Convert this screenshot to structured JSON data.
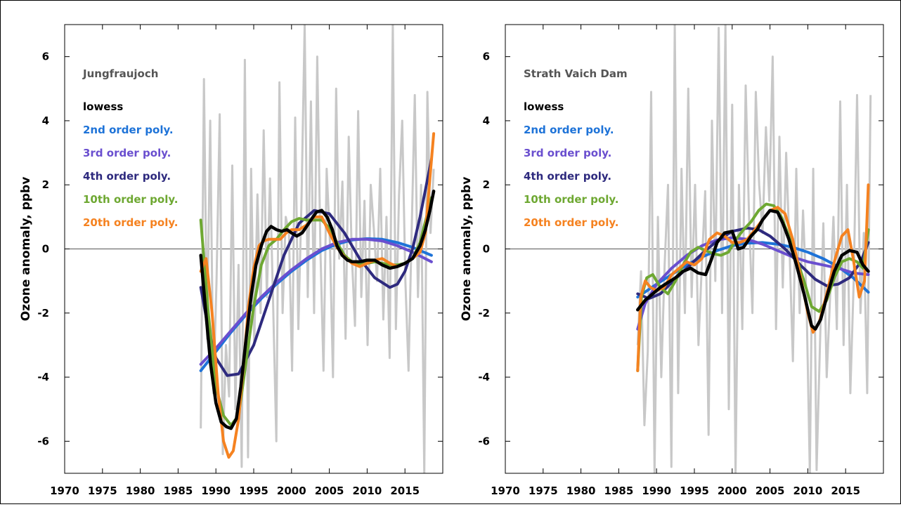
{
  "chart_data": [
    {
      "type": "line",
      "title": "Jungfraujoch",
      "ylabel": "Ozone anomaly, ppbv",
      "xlabel": "",
      "xlim": [
        1970,
        2020
      ],
      "ylim": [
        -7,
        7
      ],
      "xticks": [
        1970,
        1975,
        1980,
        1985,
        1990,
        1995,
        2000,
        2005,
        2010,
        2015
      ],
      "yticks": [
        -6,
        -4,
        -2,
        0,
        2,
        4,
        6
      ],
      "zero_line": true,
      "grid": false,
      "legend": "top-left",
      "raw": {
        "color": "#c8c8c8",
        "x0": 1988,
        "x1": 2018.8,
        "values": [
          -5.6,
          5.3,
          -2.8,
          4.0,
          -4.5,
          -1.0,
          4.2,
          -6.4,
          -3.0,
          -4.6,
          2.6,
          -5.0,
          -0.5,
          -6.8,
          5.9,
          -6.5,
          2.5,
          -3.0,
          1.7,
          -2.0,
          3.7,
          -1.5,
          2.2,
          -1.8,
          -6.0,
          5.2,
          -2.0,
          1.0,
          0.5,
          -3.8,
          4.1,
          -2.5,
          1.5,
          7.0,
          -1.5,
          4.6,
          -2.0,
          6.0,
          0.0,
          -3.8,
          2.5,
          0.3,
          -4.0,
          5.0,
          -0.3,
          2.1,
          -2.8,
          3.5,
          -0.2,
          -2.4,
          4.3,
          -1.5,
          1.5,
          -3.0,
          2.0,
          0.6,
          -1.0,
          2.5,
          -2.2,
          1.0,
          -3.4,
          7.0,
          -2.5,
          1.7,
          4.0,
          -1.0,
          -3.8,
          0.5,
          4.8,
          -1.5,
          2.0,
          -7.0,
          4.9,
          0.5,
          2.5
        ]
      },
      "series": [
        {
          "name": "2nd order poly.",
          "color": "#1e73d8",
          "x": [
            1988,
            1990,
            1992,
            1994,
            1996,
            1998,
            2000,
            2002,
            2004,
            2006,
            2008,
            2010,
            2012,
            2014,
            2016,
            2018.5
          ],
          "y": [
            -3.8,
            -3.2,
            -2.6,
            -2.05,
            -1.55,
            -1.1,
            -0.7,
            -0.35,
            -0.05,
            0.15,
            0.28,
            0.32,
            0.3,
            0.2,
            0.05,
            -0.2
          ]
        },
        {
          "name": "3rd order poly.",
          "color": "#6a4fcf",
          "x": [
            1988,
            1990,
            1992,
            1994,
            1996,
            1998,
            2000,
            2002,
            2004,
            2006,
            2008,
            2010,
            2012,
            2014,
            2016,
            2018.5
          ],
          "y": [
            -3.6,
            -3.1,
            -2.55,
            -2.0,
            -1.5,
            -1.05,
            -0.65,
            -0.3,
            0.0,
            0.2,
            0.3,
            0.3,
            0.25,
            0.1,
            -0.1,
            -0.4
          ]
        },
        {
          "name": "4th order poly.",
          "color": "#2e2a7e",
          "x": [
            1988,
            1989,
            1990,
            1991.5,
            1993,
            1995,
            1997,
            1999,
            2001,
            2003,
            2005,
            2007,
            2009,
            2011,
            2013,
            2014,
            2015,
            2016,
            2017,
            2018.5
          ],
          "y": [
            -1.2,
            -2.5,
            -3.4,
            -3.95,
            -3.9,
            -3.0,
            -1.6,
            -0.2,
            0.8,
            1.2,
            1.1,
            0.5,
            -0.3,
            -0.9,
            -1.2,
            -1.1,
            -0.7,
            0.0,
            1.0,
            2.8
          ]
        },
        {
          "name": "10th order poly.",
          "color": "#6ea832",
          "x": [
            1988,
            1989,
            1990,
            1991,
            1992,
            1993,
            1994,
            1995,
            1996,
            1997,
            1998,
            1999,
            2000,
            2001,
            2002,
            2003,
            2004,
            2005,
            2006,
            2007,
            2008,
            2009,
            2010,
            2011,
            2012,
            2013,
            2014,
            2015,
            2016,
            2017,
            2018.5
          ],
          "y": [
            0.9,
            -2.0,
            -4.3,
            -5.2,
            -5.5,
            -5.2,
            -3.5,
            -1.8,
            -0.5,
            0.1,
            0.3,
            0.6,
            0.85,
            0.95,
            0.9,
            0.9,
            0.9,
            0.65,
            0.2,
            -0.2,
            -0.4,
            -0.5,
            -0.45,
            -0.4,
            -0.45,
            -0.5,
            -0.5,
            -0.45,
            -0.3,
            0.2,
            1.6
          ]
        },
        {
          "name": "20th order poly.",
          "color": "#f58220",
          "x": [
            1988,
            1988.7,
            1989.5,
            1990.3,
            1991,
            1991.7,
            1992.3,
            1993,
            1993.7,
            1994.3,
            1995,
            1995.7,
            1996.3,
            1997,
            1997.7,
            1998.5,
            1999.3,
            2000,
            2001,
            2002,
            2003,
            2004,
            2005,
            2006,
            2007,
            2008,
            2009,
            2010,
            2011,
            2012,
            2013,
            2014,
            2015,
            2016,
            2017,
            2017.7,
            2018.3,
            2018.8
          ],
          "y": [
            -0.7,
            -0.3,
            -2.0,
            -4.5,
            -6.0,
            -6.5,
            -6.3,
            -5.3,
            -3.5,
            -1.8,
            -0.6,
            0.1,
            0.25,
            0.3,
            0.3,
            0.3,
            0.5,
            0.6,
            0.6,
            0.75,
            1.0,
            1.0,
            0.5,
            0.05,
            -0.25,
            -0.45,
            -0.55,
            -0.45,
            -0.35,
            -0.3,
            -0.45,
            -0.55,
            -0.45,
            -0.3,
            -0.1,
            0.5,
            2.2,
            3.6
          ]
        },
        {
          "name": "lowess",
          "color": "#000000",
          "x": [
            1988,
            1988.6,
            1989.3,
            1990,
            1990.7,
            1991.4,
            1992,
            1992.7,
            1993.3,
            1994,
            1994.7,
            1995.3,
            1996,
            1996.7,
            1997.3,
            1998,
            1998.7,
            1999.4,
            2000,
            2000.7,
            2001.4,
            2002,
            2002.7,
            2003.3,
            2004,
            2004.7,
            2005.4,
            2006,
            2006.7,
            2007.4,
            2008,
            2009,
            2010,
            2011,
            2012,
            2013,
            2014,
            2015,
            2016,
            2017,
            2017.7,
            2018.3,
            2018.8
          ],
          "y": [
            -0.2,
            -1.8,
            -3.6,
            -4.8,
            -5.4,
            -5.55,
            -5.6,
            -5.3,
            -4.3,
            -2.8,
            -1.4,
            -0.5,
            0.1,
            0.55,
            0.7,
            0.6,
            0.55,
            0.6,
            0.5,
            0.4,
            0.5,
            0.7,
            0.95,
            1.15,
            1.2,
            1.0,
            0.6,
            0.1,
            -0.2,
            -0.35,
            -0.4,
            -0.4,
            -0.35,
            -0.35,
            -0.5,
            -0.6,
            -0.55,
            -0.45,
            -0.3,
            0.1,
            0.6,
            1.2,
            1.8
          ]
        }
      ]
    },
    {
      "type": "line",
      "title": "Strath Vaich Dam",
      "ylabel": "Ozone anomaly, ppbv",
      "xlabel": "",
      "xlim": [
        1970,
        2020
      ],
      "ylim": [
        -7,
        7
      ],
      "xticks": [
        1970,
        1975,
        1980,
        1985,
        1990,
        1995,
        2000,
        2005,
        2010,
        2015
      ],
      "yticks": [
        -6,
        -4,
        -2,
        0,
        2,
        4,
        6
      ],
      "zero_line": true,
      "grid": false,
      "legend": "top-left",
      "raw": {
        "color": "#c8c8c8",
        "x0": 1987.5,
        "x1": 2018.3,
        "values": [
          -3.0,
          -0.7,
          -5.5,
          -3.2,
          4.9,
          -7.0,
          1.0,
          -4.0,
          -0.5,
          2.0,
          -6.8,
          7.0,
          -4.5,
          2.5,
          -2.0,
          5.0,
          -1.5,
          2.0,
          -3.0,
          -0.5,
          1.8,
          -5.8,
          4.0,
          -1.0,
          6.9,
          -2.0,
          7.0,
          -5.0,
          4.5,
          -7.0,
          2.0,
          -2.5,
          5.1,
          1.0,
          -2.0,
          4.9,
          2.0,
          0.5,
          3.8,
          1.5,
          6.0,
          -2.5,
          3.5,
          -1.2,
          3.0,
          0.0,
          -3.5,
          2.5,
          -2.0,
          1.2,
          -1.5,
          -7.0,
          2.5,
          -6.9,
          -3.0,
          0.8,
          -4.0,
          -1.5,
          1.0,
          -2.5,
          4.6,
          -3.0,
          2.0,
          -4.5,
          -1.0,
          4.8,
          -2.0,
          0.5,
          -4.5,
          4.8
        ]
      },
      "series": [
        {
          "name": "2nd order poly.",
          "color": "#1e73d8",
          "x": [
            1987.5,
            1990,
            1992,
            1994,
            1996,
            1998,
            2000,
            2002,
            2004,
            2006,
            2008,
            2010,
            2012,
            2014,
            2016,
            2018
          ],
          "y": [
            -1.5,
            -1.1,
            -0.8,
            -0.5,
            -0.25,
            -0.05,
            0.1,
            0.18,
            0.2,
            0.15,
            0.05,
            -0.1,
            -0.3,
            -0.55,
            -0.9,
            -1.35
          ]
        },
        {
          "name": "3rd order poly.",
          "color": "#6a4fcf",
          "x": [
            1987.5,
            1988.5,
            1990,
            1992,
            1994,
            1996,
            1998,
            2000,
            2002,
            2004,
            2006,
            2008,
            2010,
            2012,
            2014,
            2016,
            2018
          ],
          "y": [
            -2.5,
            -1.7,
            -1.1,
            -0.6,
            -0.2,
            0.1,
            0.28,
            0.35,
            0.3,
            0.15,
            -0.05,
            -0.25,
            -0.4,
            -0.5,
            -0.6,
            -0.75,
            -0.8
          ]
        },
        {
          "name": "4th order poly.",
          "color": "#2e2a7e",
          "x": [
            1987.5,
            1989,
            1990.5,
            1992,
            1994,
            1996,
            1998,
            2000,
            2002,
            2003.5,
            2005,
            2007,
            2009,
            2011,
            2012.5,
            2014,
            2015.5,
            2017,
            2018
          ],
          "y": [
            -1.4,
            -1.55,
            -1.4,
            -1.05,
            -0.6,
            -0.15,
            0.25,
            0.55,
            0.65,
            0.6,
            0.4,
            0.0,
            -0.5,
            -0.95,
            -1.15,
            -1.1,
            -0.9,
            -0.4,
            0.2
          ]
        },
        {
          "name": "10th order poly.",
          "color": "#6ea832",
          "x": [
            1987.5,
            1988,
            1988.7,
            1989.5,
            1990.5,
            1991.5,
            1992.5,
            1993.5,
            1994.5,
            1995.5,
            1996.5,
            1997.5,
            1998.5,
            1999.5,
            2000.5,
            2001.5,
            2002.5,
            2003.5,
            2004.5,
            2005.5,
            2006.5,
            2007.5,
            2008.5,
            2009.5,
            2010.5,
            2011.5,
            2012.5,
            2013.5,
            2014.5,
            2015.5,
            2016.5,
            2017.3,
            2018
          ],
          "y": [
            -3.8,
            -1.5,
            -0.9,
            -0.8,
            -1.2,
            -1.4,
            -1.0,
            -0.5,
            -0.1,
            0.05,
            -0.05,
            -0.15,
            -0.2,
            -0.1,
            0.3,
            0.6,
            0.85,
            1.2,
            1.4,
            1.35,
            1.0,
            0.4,
            -0.3,
            -1.0,
            -1.8,
            -1.95,
            -1.6,
            -0.9,
            -0.4,
            -0.3,
            -0.4,
            -0.6,
            0.6
          ]
        },
        {
          "name": "20th order poly.",
          "color": "#f58220",
          "x": [
            1987.5,
            1987.9,
            1988.5,
            1989.2,
            1990,
            1991,
            1992,
            1993,
            1994,
            1995,
            1996,
            1997,
            1998,
            1999,
            2000,
            2001,
            2002,
            2003,
            2004,
            2005,
            2006,
            2007,
            2008,
            2009,
            2010,
            2010.7,
            2011.5,
            2012.5,
            2013.5,
            2014.5,
            2015.3,
            2016,
            2016.8,
            2017.5,
            2018
          ],
          "y": [
            -3.8,
            -1.5,
            -1.0,
            -1.2,
            -1.3,
            -1.2,
            -0.8,
            -0.6,
            -0.4,
            -0.5,
            -0.3,
            0.3,
            0.5,
            0.4,
            0.2,
            0.2,
            0.3,
            0.6,
            0.9,
            1.2,
            1.3,
            1.1,
            0.3,
            -0.8,
            -2.0,
            -2.6,
            -2.3,
            -1.4,
            -0.4,
            0.4,
            0.6,
            -0.3,
            -1.5,
            -1.0,
            2.0
          ]
        },
        {
          "name": "lowess",
          "color": "#000000",
          "x": [
            1987.5,
            1988.5,
            1989.5,
            1990.5,
            1991.5,
            1992.5,
            1993.5,
            1994.5,
            1995.5,
            1996.5,
            1997.3,
            1998,
            1999,
            2000,
            2000.8,
            2001.5,
            2002.5,
            2003.3,
            2004,
            2005,
            2006,
            2006.7,
            2007.5,
            2008.5,
            2009.5,
            2010.5,
            2011,
            2011.7,
            2012.5,
            2013.5,
            2014.5,
            2015.5,
            2016.5,
            2017.3,
            2018
          ],
          "y": [
            -1.9,
            -1.6,
            -1.4,
            -1.2,
            -1.05,
            -0.9,
            -0.7,
            -0.6,
            -0.75,
            -0.8,
            -0.3,
            0.2,
            0.5,
            0.55,
            0.0,
            0.05,
            0.4,
            0.6,
            0.9,
            1.2,
            1.15,
            0.8,
            0.3,
            -0.5,
            -1.4,
            -2.4,
            -2.5,
            -2.2,
            -1.5,
            -0.7,
            -0.2,
            -0.05,
            -0.1,
            -0.5,
            -0.7
          ]
        }
      ]
    }
  ]
}
